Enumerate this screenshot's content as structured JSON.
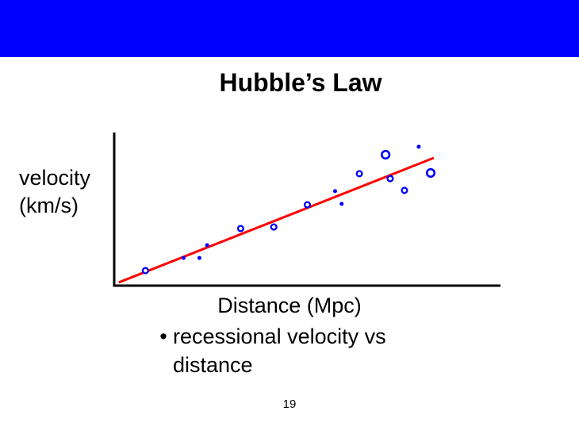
{
  "colors": {
    "header_bar": "#0000ff",
    "markers": "#0000ff",
    "fit_line": "#ff0000",
    "axes": "#000000"
  },
  "slide": {
    "title": "Hubble’s Law",
    "bullet_symbol": "•",
    "bullet_text": "recessional velocity vs distance",
    "page_number": "19"
  },
  "chart_data": {
    "type": "scatter",
    "title": "",
    "xlabel": "Distance (Mpc)",
    "ylabel_lines": [
      "velocity",
      "(km/s)"
    ],
    "xlim": [
      0,
      100
    ],
    "ylim": [
      0,
      100
    ],
    "axis_ticks": false,
    "grid": false,
    "x_tick_labels": [],
    "y_tick_labels": [],
    "points": [
      {
        "x": 8.1,
        "y": 9.8,
        "marker": "ring",
        "size": "medium"
      },
      {
        "x": 18.0,
        "y": 18.1,
        "marker": "dot",
        "size": "small"
      },
      {
        "x": 22.1,
        "y": 18.1,
        "marker": "dot",
        "size": "small"
      },
      {
        "x": 24.1,
        "y": 26.4,
        "marker": "dot",
        "size": "small"
      },
      {
        "x": 32.8,
        "y": 37.3,
        "marker": "ring",
        "size": "medium"
      },
      {
        "x": 41.4,
        "y": 38.3,
        "marker": "ring",
        "size": "medium"
      },
      {
        "x": 50.1,
        "y": 52.8,
        "marker": "ring",
        "size": "medium"
      },
      {
        "x": 57.3,
        "y": 61.7,
        "marker": "dot",
        "size": "small"
      },
      {
        "x": 59.0,
        "y": 53.4,
        "marker": "dot",
        "size": "small"
      },
      {
        "x": 63.6,
        "y": 73.1,
        "marker": "ring",
        "size": "medium"
      },
      {
        "x": 70.4,
        "y": 85.5,
        "marker": "ring",
        "size": "large"
      },
      {
        "x": 71.6,
        "y": 69.9,
        "marker": "ring",
        "size": "medium"
      },
      {
        "x": 75.3,
        "y": 62.2,
        "marker": "ring",
        "size": "medium"
      },
      {
        "x": 79.0,
        "y": 90.7,
        "marker": "dot",
        "size": "small"
      },
      {
        "x": 82.1,
        "y": 73.6,
        "marker": "ring",
        "size": "large"
      }
    ],
    "fit_line": {
      "x": [
        1.2,
        82.9
      ],
      "y": [
        2.1,
        83.4
      ]
    }
  }
}
